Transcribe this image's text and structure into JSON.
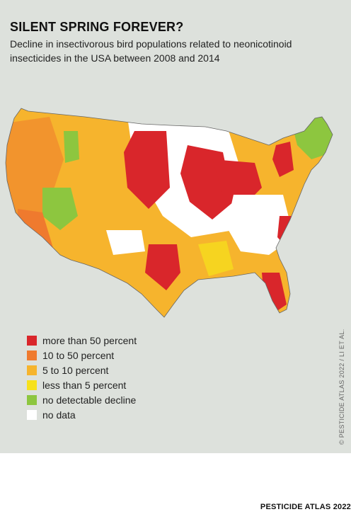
{
  "header": {
    "title": "SILENT SPRING FOREVER?",
    "subtitle": "Decline in insectivorous bird populations related to neonicotinoid insecticides in the USA between 2008 and 2014"
  },
  "legend": [
    {
      "label": "more than 50 percent",
      "color": "#d9262b"
    },
    {
      "label": "10 to 50 percent",
      "color": "#ef7a2e"
    },
    {
      "label": "5 to 10 percent",
      "color": "#f6b42d"
    },
    {
      "label": "less than 5 percent",
      "color": "#f7e11b"
    },
    {
      "label": "no detectable decline",
      "color": "#8dc63f"
    },
    {
      "label": "no data",
      "color": "#ffffff"
    }
  ],
  "credit": "© PESTICIDE ATLAS 2022 / LI ET AL.",
  "footer": "PESTICIDE ATLAS 2022"
}
